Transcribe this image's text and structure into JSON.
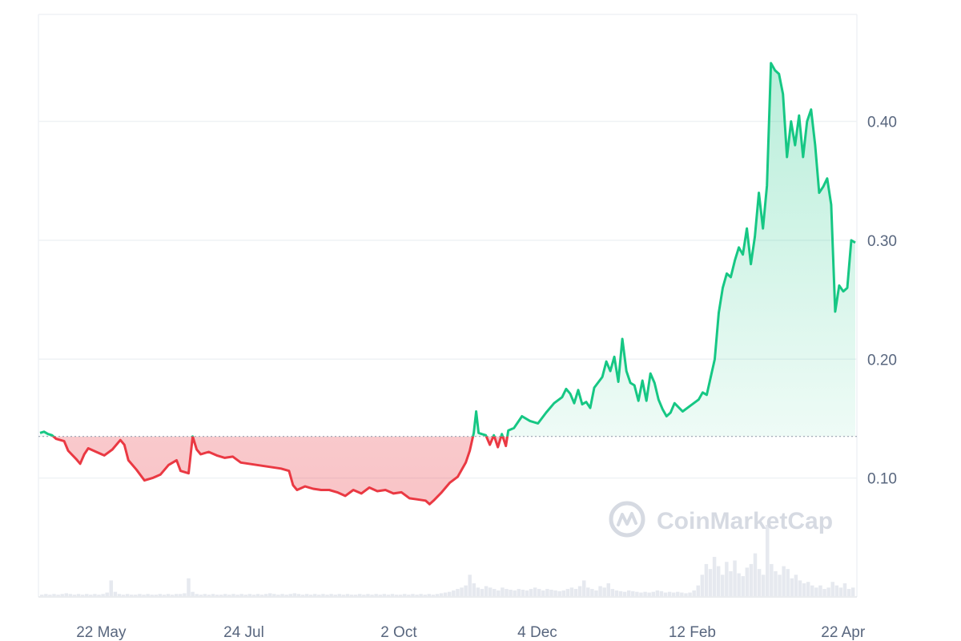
{
  "chart_data": {
    "type": "area",
    "title": "",
    "xlabel": "",
    "ylabel": "",
    "ylim": [
      0.0,
      0.49
    ],
    "y_ticks": [
      0.1,
      0.2,
      0.3,
      0.4
    ],
    "y_tick_labels": [
      "0.10",
      "0.20",
      "0.30",
      "0.40"
    ],
    "x_tick_labels": [
      "22 May",
      "24 Jul",
      "2 Oct",
      "4 Dec",
      "12 Feb",
      "22 Apr"
    ],
    "x_tick_positions": [
      0.075,
      0.25,
      0.44,
      0.61,
      0.8,
      0.985
    ],
    "baseline": 0.135,
    "grid": "horizontal",
    "colors": {
      "up": "#16c784",
      "down": "#ea3943",
      "up_fill": "#16c784",
      "down_fill": "#ea3943",
      "grid": "#eff2f5",
      "baseline": "#9aa3b2",
      "volume": "#e6e9ef"
    },
    "price_series": [
      [
        0.0,
        0.138
      ],
      [
        0.005,
        0.139
      ],
      [
        0.01,
        0.137
      ],
      [
        0.015,
        0.136
      ],
      [
        0.02,
        0.133
      ],
      [
        0.03,
        0.131
      ],
      [
        0.035,
        0.123
      ],
      [
        0.045,
        0.116
      ],
      [
        0.05,
        0.112
      ],
      [
        0.055,
        0.12
      ],
      [
        0.06,
        0.125
      ],
      [
        0.07,
        0.122
      ],
      [
        0.08,
        0.119
      ],
      [
        0.09,
        0.124
      ],
      [
        0.1,
        0.132
      ],
      [
        0.105,
        0.128
      ],
      [
        0.11,
        0.115
      ],
      [
        0.12,
        0.107
      ],
      [
        0.13,
        0.098
      ],
      [
        0.14,
        0.1
      ],
      [
        0.15,
        0.103
      ],
      [
        0.16,
        0.111
      ],
      [
        0.17,
        0.115
      ],
      [
        0.175,
        0.106
      ],
      [
        0.185,
        0.104
      ],
      [
        0.19,
        0.135
      ],
      [
        0.195,
        0.124
      ],
      [
        0.2,
        0.12
      ],
      [
        0.21,
        0.122
      ],
      [
        0.22,
        0.119
      ],
      [
        0.23,
        0.117
      ],
      [
        0.24,
        0.118
      ],
      [
        0.25,
        0.113
      ],
      [
        0.26,
        0.112
      ],
      [
        0.27,
        0.111
      ],
      [
        0.28,
        0.11
      ],
      [
        0.29,
        0.109
      ],
      [
        0.3,
        0.108
      ],
      [
        0.31,
        0.106
      ],
      [
        0.315,
        0.094
      ],
      [
        0.32,
        0.09
      ],
      [
        0.33,
        0.093
      ],
      [
        0.34,
        0.091
      ],
      [
        0.35,
        0.09
      ],
      [
        0.36,
        0.09
      ],
      [
        0.37,
        0.088
      ],
      [
        0.38,
        0.085
      ],
      [
        0.39,
        0.09
      ],
      [
        0.4,
        0.087
      ],
      [
        0.41,
        0.092
      ],
      [
        0.42,
        0.089
      ],
      [
        0.43,
        0.09
      ],
      [
        0.44,
        0.087
      ],
      [
        0.45,
        0.088
      ],
      [
        0.46,
        0.083
      ],
      [
        0.47,
        0.082
      ],
      [
        0.48,
        0.081
      ],
      [
        0.485,
        0.078
      ],
      [
        0.49,
        0.081
      ],
      [
        0.5,
        0.088
      ],
      [
        0.51,
        0.096
      ],
      [
        0.52,
        0.101
      ],
      [
        0.53,
        0.113
      ],
      [
        0.535,
        0.123
      ],
      [
        0.54,
        0.138
      ],
      [
        0.543,
        0.156
      ],
      [
        0.546,
        0.138
      ],
      [
        0.55,
        0.137
      ],
      [
        0.555,
        0.136
      ],
      [
        0.56,
        0.128
      ],
      [
        0.565,
        0.136
      ],
      [
        0.57,
        0.126
      ],
      [
        0.575,
        0.137
      ],
      [
        0.58,
        0.127
      ],
      [
        0.583,
        0.14
      ],
      [
        0.59,
        0.142
      ],
      [
        0.6,
        0.152
      ],
      [
        0.61,
        0.148
      ],
      [
        0.62,
        0.146
      ],
      [
        0.63,
        0.155
      ],
      [
        0.64,
        0.163
      ],
      [
        0.65,
        0.168
      ],
      [
        0.655,
        0.175
      ],
      [
        0.66,
        0.171
      ],
      [
        0.665,
        0.163
      ],
      [
        0.67,
        0.174
      ],
      [
        0.675,
        0.162
      ],
      [
        0.68,
        0.164
      ],
      [
        0.685,
        0.159
      ],
      [
        0.69,
        0.176
      ],
      [
        0.7,
        0.185
      ],
      [
        0.705,
        0.198
      ],
      [
        0.71,
        0.19
      ],
      [
        0.715,
        0.202
      ],
      [
        0.72,
        0.181
      ],
      [
        0.725,
        0.217
      ],
      [
        0.73,
        0.19
      ],
      [
        0.735,
        0.18
      ],
      [
        0.74,
        0.178
      ],
      [
        0.745,
        0.165
      ],
      [
        0.75,
        0.182
      ],
      [
        0.755,
        0.165
      ],
      [
        0.76,
        0.188
      ],
      [
        0.765,
        0.18
      ],
      [
        0.77,
        0.166
      ],
      [
        0.775,
        0.158
      ],
      [
        0.78,
        0.152
      ],
      [
        0.785,
        0.155
      ],
      [
        0.79,
        0.163
      ],
      [
        0.8,
        0.156
      ],
      [
        0.81,
        0.161
      ],
      [
        0.82,
        0.166
      ],
      [
        0.825,
        0.172
      ],
      [
        0.83,
        0.17
      ],
      [
        0.835,
        0.185
      ],
      [
        0.84,
        0.2
      ],
      [
        0.845,
        0.239
      ],
      [
        0.85,
        0.26
      ],
      [
        0.855,
        0.272
      ],
      [
        0.86,
        0.269
      ],
      [
        0.865,
        0.283
      ],
      [
        0.87,
        0.294
      ],
      [
        0.875,
        0.288
      ],
      [
        0.88,
        0.31
      ],
      [
        0.885,
        0.28
      ],
      [
        0.89,
        0.303
      ],
      [
        0.895,
        0.34
      ],
      [
        0.9,
        0.31
      ],
      [
        0.905,
        0.346
      ],
      [
        0.91,
        0.449
      ],
      [
        0.915,
        0.443
      ],
      [
        0.92,
        0.44
      ],
      [
        0.925,
        0.423
      ],
      [
        0.93,
        0.37
      ],
      [
        0.935,
        0.4
      ],
      [
        0.94,
        0.38
      ],
      [
        0.945,
        0.405
      ],
      [
        0.95,
        0.37
      ],
      [
        0.955,
        0.4
      ],
      [
        0.96,
        0.41
      ],
      [
        0.965,
        0.38
      ],
      [
        0.97,
        0.34
      ],
      [
        0.975,
        0.345
      ],
      [
        0.98,
        0.352
      ],
      [
        0.985,
        0.33
      ],
      [
        0.99,
        0.24
      ],
      [
        0.995,
        0.262
      ],
      [
        1.0,
        0.257
      ],
      [
        1.005,
        0.26
      ],
      [
        1.01,
        0.3
      ],
      [
        1.015,
        0.298
      ]
    ],
    "volume_series": [
      0.02,
      0.03,
      0.02,
      0.03,
      0.02,
      0.03,
      0.04,
      0.03,
      0.02,
      0.03,
      0.02,
      0.03,
      0.02,
      0.03,
      0.02,
      0.03,
      0.05,
      0.22,
      0.06,
      0.03,
      0.02,
      0.03,
      0.02,
      0.02,
      0.03,
      0.02,
      0.03,
      0.02,
      0.02,
      0.03,
      0.02,
      0.03,
      0.02,
      0.03,
      0.03,
      0.04,
      0.25,
      0.06,
      0.03,
      0.02,
      0.03,
      0.02,
      0.03,
      0.02,
      0.02,
      0.03,
      0.02,
      0.03,
      0.02,
      0.03,
      0.02,
      0.03,
      0.02,
      0.03,
      0.02,
      0.03,
      0.04,
      0.03,
      0.02,
      0.03,
      0.02,
      0.03,
      0.04,
      0.03,
      0.02,
      0.03,
      0.02,
      0.03,
      0.02,
      0.03,
      0.02,
      0.03,
      0.02,
      0.03,
      0.02,
      0.03,
      0.02,
      0.02,
      0.03,
      0.02,
      0.03,
      0.02,
      0.03,
      0.02,
      0.03,
      0.02,
      0.03,
      0.02,
      0.02,
      0.03,
      0.02,
      0.03,
      0.02,
      0.03,
      0.02,
      0.03,
      0.02,
      0.03,
      0.04,
      0.05,
      0.06,
      0.08,
      0.1,
      0.12,
      0.15,
      0.3,
      0.18,
      0.12,
      0.1,
      0.14,
      0.12,
      0.1,
      0.08,
      0.12,
      0.1,
      0.09,
      0.08,
      0.1,
      0.09,
      0.08,
      0.1,
      0.12,
      0.1,
      0.08,
      0.1,
      0.09,
      0.08,
      0.07,
      0.08,
      0.1,
      0.12,
      0.1,
      0.14,
      0.22,
      0.12,
      0.1,
      0.08,
      0.14,
      0.12,
      0.18,
      0.1,
      0.08,
      0.07,
      0.06,
      0.08,
      0.07,
      0.06,
      0.05,
      0.06,
      0.05,
      0.06,
      0.08,
      0.07,
      0.05,
      0.06,
      0.05,
      0.06,
      0.05,
      0.04,
      0.05,
      0.08,
      0.15,
      0.3,
      0.45,
      0.38,
      0.55,
      0.42,
      0.3,
      0.48,
      0.35,
      0.5,
      0.32,
      0.28,
      0.4,
      0.45,
      0.6,
      0.38,
      0.3,
      1.0,
      0.45,
      0.35,
      0.3,
      0.42,
      0.38,
      0.25,
      0.3,
      0.22,
      0.18,
      0.2,
      0.15,
      0.12,
      0.15,
      0.1,
      0.12,
      0.2,
      0.15,
      0.12,
      0.18,
      0.1,
      0.12
    ]
  },
  "watermark": {
    "text": "CoinMarketCap",
    "icon": "coinmarketcap-logo-icon"
  }
}
